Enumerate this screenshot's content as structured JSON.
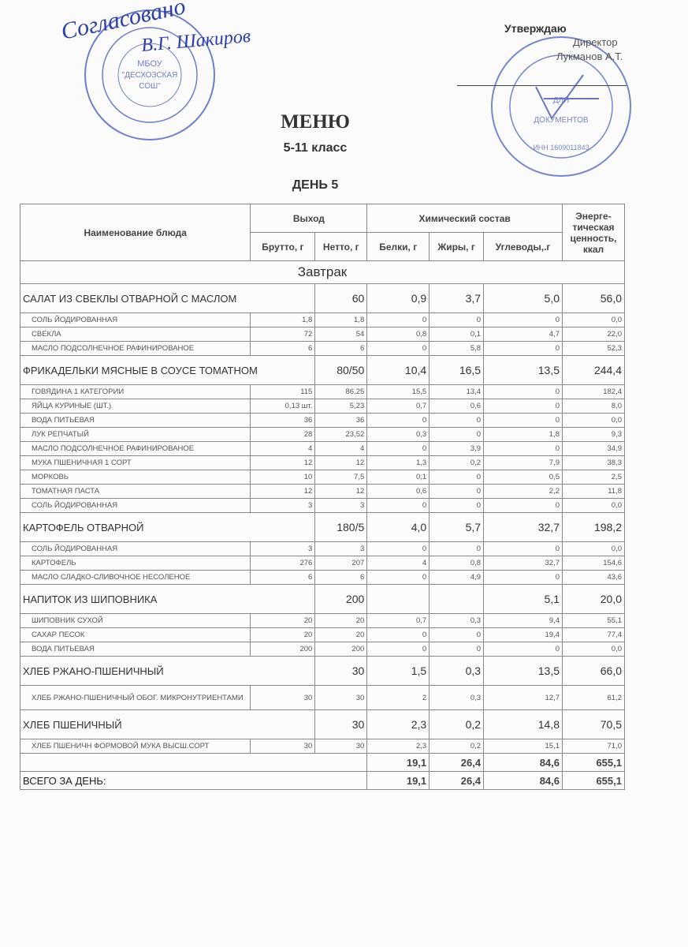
{
  "approval": {
    "handwritten_agreed": "Согласовано",
    "signature": "В.Г. Шакиров",
    "title": "Утверждаю",
    "position": "Директор",
    "name": "Лукманов А.Т."
  },
  "stamps": {
    "left": [
      "МБОУ",
      "\"ДЕСХОЗСКАЯ",
      "СОШ\""
    ],
    "right": [
      "ДЛЯ",
      "ДОКУМЕНТОВ",
      "ИНН 1609011843"
    ]
  },
  "heading": {
    "title": "МЕНЮ",
    "grade": "5-11 класс",
    "day": "ДЕНЬ 5"
  },
  "table": {
    "headers": {
      "name": "Наименование блюда",
      "output": "Выход",
      "chem": "Химический состав",
      "energy": "Энерге-тическая ценность, ккал",
      "brutto": "Брутто, г",
      "netto": "Нетто, г",
      "protein": "Белки, г",
      "fat": "Жиры, г",
      "carbs": "Углеводы,.г"
    },
    "section": "Завтрак",
    "rows": [
      {
        "type": "dish",
        "name": "САЛАТ ИЗ СВЕКЛЫ ОТВАРНОЙ С МАСЛОМ",
        "out": "60",
        "p": "0,9",
        "f": "3,7",
        "c": "5,0",
        "e": "56,0"
      },
      {
        "type": "ing",
        "name": "СОЛЬ  ЙОДИРОВАННАЯ",
        "b": "1,8",
        "n": "1,8",
        "p": "0",
        "f": "0",
        "c": "0",
        "e": "0,0"
      },
      {
        "type": "ing",
        "name": "СВЕКЛА",
        "b": "72",
        "n": "54",
        "p": "0,8",
        "f": "0,1",
        "c": "4,7",
        "e": "22,0"
      },
      {
        "type": "ing",
        "name": "МАСЛО ПОДСОЛНЕЧНОЕ РАФИНИРОВАНОЕ",
        "b": "6",
        "n": "6",
        "p": "0",
        "f": "5,8",
        "c": "0",
        "e": "52,3"
      },
      {
        "type": "dish",
        "name": "ФРИКАДЕЛЬКИ МЯСНЫЕ В СОУСЕ ТОМАТНОМ",
        "out": "80/50",
        "p": "10,4",
        "f": "16,5",
        "c": "13,5",
        "e": "244,4"
      },
      {
        "type": "ing",
        "name": "ГОВЯДИНА 1 КАТЕГОРИИ",
        "b": "115",
        "n": "86,25",
        "p": "15,5",
        "f": "13,4",
        "c": "0",
        "e": "182,4"
      },
      {
        "type": "ing",
        "name": "ЯЙЦА КУРИНЫЕ (ШТ.)",
        "b": "0,13 шт.",
        "n": "5,23",
        "p": "0,7",
        "f": "0,6",
        "c": "0",
        "e": "8,0"
      },
      {
        "type": "ing",
        "name": "ВОДА ПИТЬЕВАЯ",
        "b": "36",
        "n": "36",
        "p": "0",
        "f": "0",
        "c": "0",
        "e": "0,0"
      },
      {
        "type": "ing",
        "name": "ЛУК РЕПЧАТЫЙ",
        "b": "28",
        "n": "23,52",
        "p": "0,3",
        "f": "0",
        "c": "1,8",
        "e": "9,3"
      },
      {
        "type": "ing",
        "name": "МАСЛО ПОДСОЛНЕЧНОЕ РАФИНИРОВАНОЕ",
        "b": "4",
        "n": "4",
        "p": "0",
        "f": "3,9",
        "c": "0",
        "e": "34,9"
      },
      {
        "type": "ing",
        "name": "МУКА ПШЕНИЧНАЯ 1 СОРТ",
        "b": "12",
        "n": "12",
        "p": "1,3",
        "f": "0,2",
        "c": "7,9",
        "e": "38,3"
      },
      {
        "type": "ing",
        "name": "МОРКОВЬ",
        "b": "10",
        "n": "7,5",
        "p": "0,1",
        "f": "0",
        "c": "0,5",
        "e": "2,5"
      },
      {
        "type": "ing",
        "name": "ТОМАТНАЯ ПАСТА",
        "b": "12",
        "n": "12",
        "p": "0,6",
        "f": "0",
        "c": "2,2",
        "e": "11,8"
      },
      {
        "type": "ing",
        "name": "СОЛЬ  ЙОДИРОВАННАЯ",
        "b": "3",
        "n": "3",
        "p": "0",
        "f": "0",
        "c": "0",
        "e": "0,0"
      },
      {
        "type": "dish",
        "name": "КАРТОФЕЛЬ ОТВАРНОЙ",
        "out": "180/5",
        "p": "4,0",
        "f": "5,7",
        "c": "32,7",
        "e": "198,2"
      },
      {
        "type": "ing",
        "name": "СОЛЬ  ЙОДИРОВАННАЯ",
        "b": "3",
        "n": "3",
        "p": "0",
        "f": "0",
        "c": "0",
        "e": "0,0"
      },
      {
        "type": "ing",
        "name": "КАРТОФЕЛЬ",
        "b": "276",
        "n": "207",
        "p": "4",
        "f": "0,8",
        "c": "32,7",
        "e": "154,6"
      },
      {
        "type": "ing",
        "name": "МАСЛО СЛАДКО-СЛИВОЧНОЕ НЕСОЛЕНОЕ",
        "b": "6",
        "n": "6",
        "p": "0",
        "f": "4,9",
        "c": "0",
        "e": "43,6"
      },
      {
        "type": "dish",
        "name": "НАПИТОК ИЗ ШИПОВНИКА",
        "out": "200",
        "p": "",
        "f": "",
        "c": "5,1",
        "e": "20,0"
      },
      {
        "type": "ing",
        "name": "ШИПОВНИК СУХОЙ",
        "b": "20",
        "n": "20",
        "p": "0,7",
        "f": "0,3",
        "c": "9,4",
        "e": "55,1"
      },
      {
        "type": "ing",
        "name": "САХАР ПЕСОК",
        "b": "20",
        "n": "20",
        "p": "0",
        "f": "0",
        "c": "19,4",
        "e": "77,4"
      },
      {
        "type": "ing",
        "name": "ВОДА ПИТЬЕВАЯ",
        "b": "200",
        "n": "200",
        "p": "0",
        "f": "0",
        "c": "0",
        "e": "0,0"
      },
      {
        "type": "dish",
        "name": "ХЛЕБ РЖАНО-ПШЕНИЧНЫЙ",
        "out": "30",
        "p": "1,5",
        "f": "0,3",
        "c": "13,5",
        "e": "66,0"
      },
      {
        "type": "ing",
        "name": "ХЛЕБ РЖАНО-ПШЕНИЧНЫЙ ОБОГ. МИКРОНУТРИЕНТАМИ",
        "b": "30",
        "n": "30",
        "p": "2",
        "f": "0,3",
        "c": "12,7",
        "e": "61,2"
      },
      {
        "type": "dish",
        "name": "ХЛЕБ ПШЕНИЧНЫЙ",
        "out": "30",
        "p": "2,3",
        "f": "0,2",
        "c": "14,8",
        "e": "70,5"
      },
      {
        "type": "ing",
        "name": "ХЛЕБ ПШЕНИЧН ФОРМОВОЙ МУКА ВЫСШ.СОРТ",
        "b": "30",
        "n": "30",
        "p": "2,3",
        "f": "0,2",
        "c": "15,1",
        "e": "71,0"
      }
    ],
    "subtotal": {
      "p": "19,1",
      "f": "26,4",
      "c": "84,6",
      "e": "655,1"
    },
    "total": {
      "label": "ВСЕГО ЗА ДЕНЬ:",
      "p": "19,1",
      "f": "26,4",
      "c": "84,6",
      "e": "655,1"
    }
  }
}
